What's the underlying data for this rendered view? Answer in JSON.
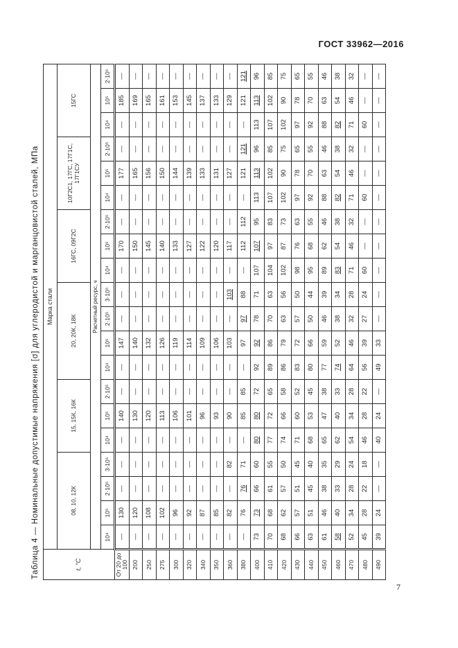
{
  "page": {
    "header": "ГОСТ 33962—2016",
    "page_number": "7"
  },
  "table": {
    "title": "Таблица 4 — Номинальные допустимые напряжения [σ] для углеродистой и марганцовистой сталей, МПа",
    "stub_header": "t, °С",
    "top_header": "Марка стали",
    "resource_header": "Расчетный ресурс, ч",
    "groups": [
      {
        "name": "08, 10, 12К",
        "resources": [
          "10⁴",
          "10⁵",
          "2·10⁵",
          "3·10⁵"
        ]
      },
      {
        "name": "15, 15К, 16К",
        "resources": [
          "10⁴",
          "10⁵",
          "2·10⁵"
        ]
      },
      {
        "name": "20, 20К, 18К",
        "resources": [
          "10⁴",
          "10⁵",
          "2·10⁵",
          "3·10⁵"
        ]
      },
      {
        "name": "16ГС, 09Г2С",
        "resources": [
          "10⁴",
          "10⁵",
          "2·10⁵"
        ]
      },
      {
        "name": "10Г2С1, 17ГС, 17Г1С, 17Г1СУ",
        "resources": [
          "10⁴",
          "10⁵",
          "2·10⁵"
        ]
      },
      {
        "name": "15ГС",
        "resources": [
          "10⁴",
          "10⁵",
          "2·10⁵"
        ]
      }
    ],
    "rows_note": "v holds 20 values per row in group/resource order above; prefix u: means the value is underlined in the source; — means no value",
    "rows": [
      {
        "t": "От 20 до 100",
        "v": [
          "—",
          "130",
          "—",
          "—",
          "—",
          "140",
          "—",
          "—",
          "147",
          "—",
          "—",
          "—",
          "170",
          "—",
          "—",
          "177",
          "—",
          "—",
          "185",
          "—"
        ]
      },
      {
        "t": "200",
        "v": [
          "—",
          "120",
          "—",
          "—",
          "—",
          "130",
          "—",
          "—",
          "140",
          "—",
          "—",
          "—",
          "150",
          "—",
          "—",
          "165",
          "—",
          "—",
          "169",
          "—"
        ]
      },
      {
        "t": "250",
        "v": [
          "—",
          "108",
          "—",
          "—",
          "—",
          "120",
          "—",
          "—",
          "132",
          "—",
          "—",
          "—",
          "145",
          "—",
          "—",
          "156",
          "—",
          "—",
          "165",
          "—"
        ]
      },
      {
        "t": "275",
        "v": [
          "—",
          "102",
          "—",
          "—",
          "—",
          "113",
          "—",
          "—",
          "126",
          "—",
          "—",
          "—",
          "140",
          "—",
          "—",
          "150",
          "—",
          "—",
          "161",
          "—"
        ]
      },
      {
        "t": "300",
        "v": [
          "—",
          "96",
          "—",
          "—",
          "—",
          "106",
          "—",
          "—",
          "119",
          "—",
          "—",
          "—",
          "133",
          "—",
          "—",
          "144",
          "—",
          "—",
          "153",
          "—"
        ]
      },
      {
        "t": "320",
        "v": [
          "—",
          "92",
          "—",
          "—",
          "—",
          "101",
          "—",
          "—",
          "114",
          "—",
          "—",
          "—",
          "127",
          "—",
          "—",
          "139",
          "—",
          "—",
          "145",
          "—"
        ]
      },
      {
        "t": "340",
        "v": [
          "—",
          "87",
          "—",
          "—",
          "—",
          "96",
          "—",
          "—",
          "109",
          "—",
          "—",
          "—",
          "122",
          "—",
          "—",
          "133",
          "—",
          "—",
          "137",
          "—"
        ]
      },
      {
        "t": "350",
        "v": [
          "—",
          "85",
          "—",
          "—",
          "—",
          "93",
          "—",
          "—",
          "106",
          "—",
          "—",
          "—",
          "120",
          "—",
          "—",
          "131",
          "—",
          "—",
          "133",
          "—"
        ]
      },
      {
        "t": "360",
        "v": [
          "—",
          "82",
          "—",
          "82",
          "—",
          "90",
          "—",
          "—",
          "103",
          "—",
          "u:103",
          "—",
          "117",
          "—",
          "—",
          "127",
          "—",
          "—",
          "129",
          "—"
        ]
      },
      {
        "t": "380",
        "v": [
          "—",
          "76",
          "u:76",
          "71",
          "—",
          "85",
          "85",
          "—",
          "97",
          "u:97",
          "88",
          "—",
          "112",
          "112",
          "—",
          "121",
          "u:121",
          "—",
          "121",
          "u:121"
        ]
      },
      {
        "t": "400",
        "v": [
          "73",
          "u:73",
          "66",
          "60",
          "u:80",
          "u:80",
          "72",
          "92",
          "u:92",
          "78",
          "71",
          "107",
          "u:107",
          "95",
          "113",
          "u:113",
          "96",
          "113",
          "u:113",
          "96"
        ]
      },
      {
        "t": "410",
        "v": [
          "70",
          "68",
          "61",
          "55",
          "77",
          "72",
          "65",
          "89",
          "86",
          "70",
          "63",
          "104",
          "97",
          "83",
          "107",
          "102",
          "85",
          "107",
          "102",
          "85"
        ]
      },
      {
        "t": "420",
        "v": [
          "68",
          "62",
          "57",
          "50",
          "74",
          "66",
          "58",
          "86",
          "79",
          "63",
          "56",
          "102",
          "87",
          "73",
          "102",
          "90",
          "75",
          "102",
          "90",
          "75"
        ]
      },
      {
        "t": "430",
        "v": [
          "66",
          "57",
          "51",
          "45",
          "71",
          "60",
          "52",
          "83",
          "72",
          "57",
          "50",
          "98",
          "76",
          "63",
          "97",
          "78",
          "65",
          "97",
          "78",
          "65"
        ]
      },
      {
        "t": "440",
        "v": [
          "63",
          "51",
          "45",
          "40",
          "68",
          "53",
          "45",
          "80",
          "66",
          "50",
          "44",
          "95",
          "68",
          "55",
          "92",
          "70",
          "55",
          "92",
          "70",
          "55"
        ]
      },
      {
        "t": "450",
        "v": [
          "61",
          "46",
          "38",
          "35",
          "65",
          "47",
          "38",
          "77",
          "59",
          "46",
          "39",
          "89",
          "62",
          "46",
          "88",
          "63",
          "46",
          "88",
          "63",
          "46"
        ]
      },
      {
        "t": "460",
        "v": [
          "u:58",
          "40",
          "33",
          "29",
          "62",
          "40",
          "33",
          "u:74",
          "52",
          "38",
          "34",
          "u:83",
          "54",
          "38",
          "u:82",
          "54",
          "38",
          "u:82",
          "54",
          "38"
        ]
      },
      {
        "t": "470",
        "v": [
          "52",
          "34",
          "28",
          "24",
          "54",
          "34",
          "28",
          "64",
          "46",
          "32",
          "28",
          "71",
          "46",
          "32",
          "71",
          "46",
          "32",
          "71",
          "46",
          "32"
        ]
      },
      {
        "t": "480",
        "v": [
          "45",
          "28",
          "22",
          "18",
          "46",
          "28",
          "22",
          "56",
          "39",
          "27",
          "24",
          "60",
          "—",
          "—",
          "60",
          "—",
          "—",
          "60",
          "—",
          "—"
        ]
      },
      {
        "t": "490",
        "v": [
          "39",
          "24",
          "—",
          "—",
          "40",
          "24",
          "—",
          "49",
          "33",
          "—",
          "—",
          "—",
          "—",
          "—",
          "—",
          "—",
          "—",
          "—",
          "—",
          "—"
        ]
      }
    ]
  }
}
